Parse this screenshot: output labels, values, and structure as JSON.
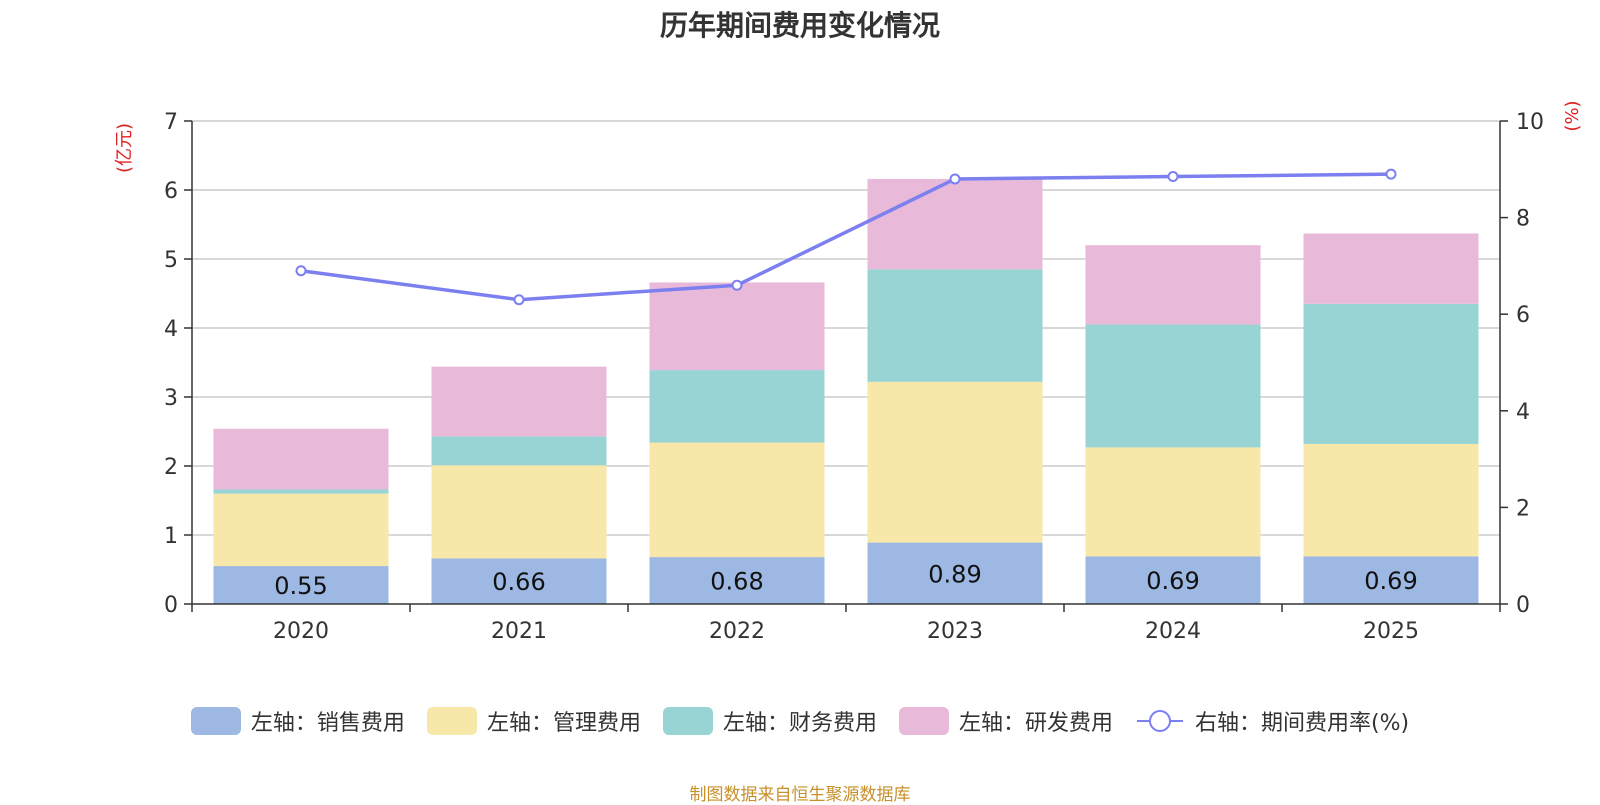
{
  "chart_data": {
    "type": "bar",
    "stacked": true,
    "title": "历年期间费用变化情况",
    "categories": [
      "2020",
      "2021",
      "2022",
      "2023",
      "2024",
      "2025"
    ],
    "left_axis": {
      "label": "(亿元)",
      "min": 0,
      "max": 7,
      "ticks": [
        "0",
        "1",
        "2",
        "3",
        "4",
        "5",
        "6",
        "7"
      ]
    },
    "right_axis": {
      "label": "(%)",
      "min": 0,
      "max": 10,
      "ticks": [
        "0",
        "2",
        "4",
        "6",
        "8",
        "10"
      ]
    },
    "series": [
      {
        "name": "左轴：销售费用",
        "axis": "left",
        "color": "#9db8e2",
        "values": [
          0.55,
          0.66,
          0.68,
          0.89,
          0.69,
          0.69
        ],
        "show_labels": true
      },
      {
        "name": "左轴：管理费用",
        "axis": "left",
        "color": "#f7e7a8",
        "values": [
          1.05,
          1.35,
          1.66,
          2.33,
          1.58,
          1.63
        ]
      },
      {
        "name": "左轴：财务费用",
        "axis": "left",
        "color": "#98d4d4",
        "values": [
          0.06,
          0.42,
          1.05,
          1.63,
          1.78,
          2.03
        ]
      },
      {
        "name": "左轴：研发费用",
        "axis": "left",
        "color": "#e8b9d8",
        "values": [
          0.88,
          1.01,
          1.27,
          1.31,
          1.15,
          1.02
        ]
      },
      {
        "name": "右轴：期间费用率(%)",
        "axis": "right",
        "type": "line",
        "color": "#7b7ff0",
        "values": [
          6.9,
          6.3,
          6.6,
          8.8,
          8.85,
          8.9
        ]
      }
    ],
    "grid": true,
    "legend_position": "bottom"
  },
  "source_note": "制图数据来自恒生聚源数据库"
}
